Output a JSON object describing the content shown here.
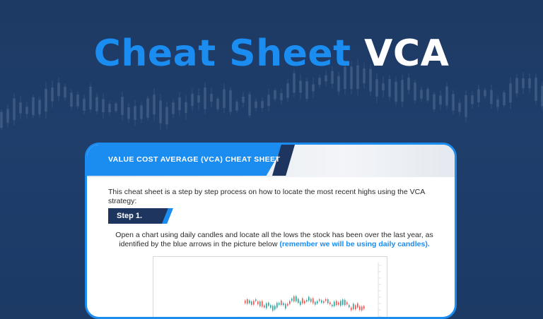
{
  "hero": {
    "title_accent": "Cheat Sheet",
    "title_light": "VCA"
  },
  "card": {
    "header_title": "VALUE COST AVERAGE (VCA) CHEAT SHEET",
    "intro": "This cheat sheet is a step by step process on how to locate the most recent highs using the VCA strategy:",
    "step_label": "Step 1.",
    "body_text": "Open a chart using daily candles and locate all the lows the stock has been over the last year, as identified by the blue arrows in the picture below ",
    "body_highlight": "(remember we will be using daily candles).",
    "chart_caption": "",
    "chart_header": "",
    "chart_symbol": ""
  },
  "colors": {
    "background": "#1d3a64",
    "accent": "#1b8cf0",
    "dark_band": "#1e3560",
    "candle_up": "#26a69a",
    "candle_down": "#ef5350"
  }
}
